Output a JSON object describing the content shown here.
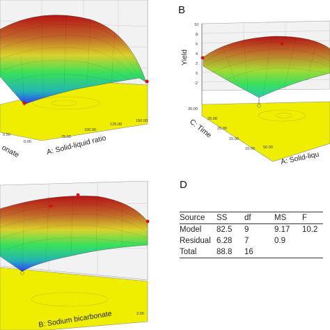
{
  "colors": {
    "floor": "#f0ee00",
    "surface_low": "#2f3cff",
    "surface_mid": "#19e36a",
    "surface_high": "#c81818",
    "point": "#d81010"
  },
  "chart_data": [
    {
      "panel": "A",
      "type": "surface",
      "title": "",
      "xlabel": "A: Solid-liquid ratio",
      "ylabel": "B: Sodium bicarbonate",
      "xlabel_visible": "A: Solid-liquid ratio",
      "ylabel_visible": "onate",
      "x_ticks": [
        "75.00",
        "100.00",
        "125.00",
        "150.00"
      ],
      "y_ticks": [
        "0.00",
        "0.50"
      ],
      "visible_panel_letter": ""
    },
    {
      "panel": "B",
      "type": "surface",
      "title": "",
      "zlabel": "Yield",
      "z_ticks": [
        "-2",
        "0",
        "2",
        "4",
        "6",
        "8",
        "10"
      ],
      "xlabel": "A: Solid-liqu",
      "ylabel": "C: Time",
      "x_ticks": [
        "50.00"
      ],
      "y_ticks": [
        "10.00",
        "15.00",
        "20.00",
        "25.00",
        "30.00"
      ]
    },
    {
      "panel": "C",
      "type": "surface",
      "title": "",
      "xlabel": "B: Sodium bicarbonate",
      "x_ticks": [
        "2.00"
      ]
    },
    {
      "panel": "D",
      "type": "table",
      "columns": [
        "Source",
        "SS",
        "df",
        "MS",
        "F"
      ],
      "rows": [
        [
          "Model",
          "82.5",
          "9",
          "9.17",
          "10.2"
        ],
        [
          "Residual",
          "6.28",
          "7",
          "0.9",
          ""
        ],
        [
          "Total",
          "88.8",
          "16",
          "",
          ""
        ]
      ]
    }
  ]
}
